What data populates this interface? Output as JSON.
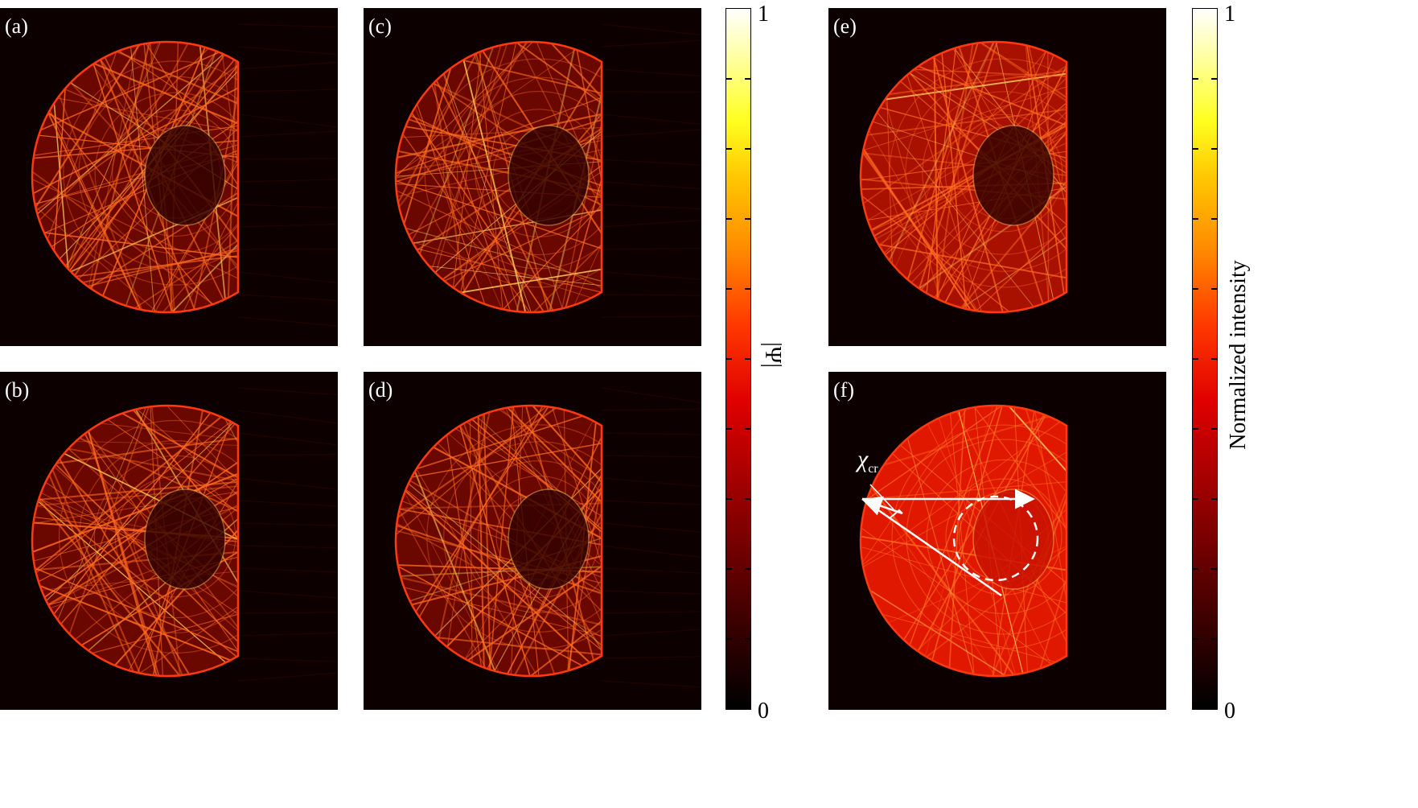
{
  "panels": [
    {
      "id": "a",
      "label": "(a)"
    },
    {
      "id": "b",
      "label": "(b)"
    },
    {
      "id": "c",
      "label": "(c)"
    },
    {
      "id": "d",
      "label": "(d)"
    },
    {
      "id": "e",
      "label": "(e)"
    },
    {
      "id": "f",
      "label": "(f)"
    }
  ],
  "colorbar_left": {
    "label": "|Ψ|",
    "max": "1",
    "min": "0"
  },
  "colorbar_right": {
    "label": "Normalized intensity",
    "max": "1",
    "min": "0"
  },
  "annotation": {
    "symbol": "χ",
    "subscript": "cr"
  },
  "colors": {
    "background": "#0d0000",
    "rim": "#ff3a10",
    "ray": "#ff6a20",
    "bright": "#ffd060"
  }
}
